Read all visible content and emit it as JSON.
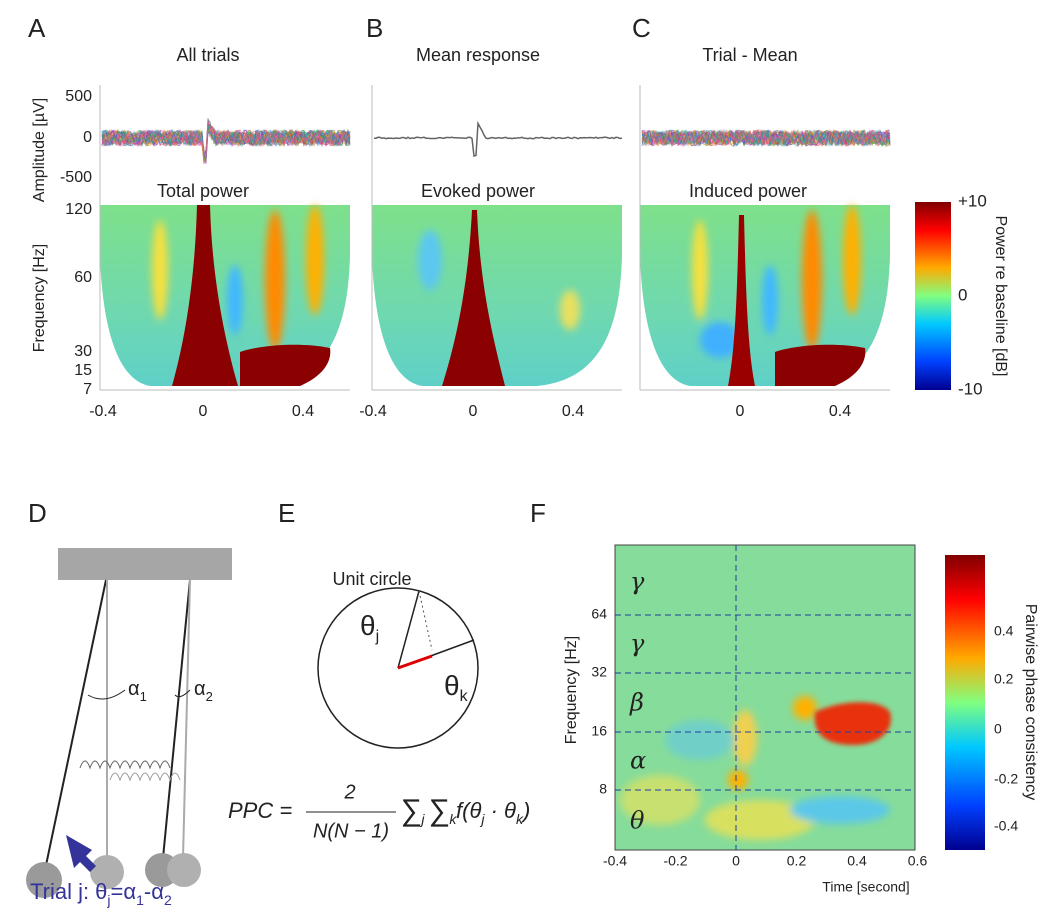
{
  "panel_a": {
    "label": "A",
    "title": "All trials",
    "amplitude_axis_label": "Amplitude [µV]",
    "amplitude_ticks": [
      "500",
      "0",
      "-500"
    ],
    "power_title": "Total power",
    "frequency_axis_label": "Frequency [Hz]",
    "frequency_ticks": [
      "120",
      "60",
      "30",
      "15",
      "7"
    ],
    "time_ticks": [
      "-0.4",
      "0",
      "0.4"
    ]
  },
  "panel_b": {
    "label": "B",
    "title": "Mean response",
    "power_title": "Evoked power",
    "time_ticks": [
      "-0.4",
      "0",
      "0.4"
    ]
  },
  "panel_c": {
    "label": "C",
    "title": "Trial - Mean",
    "power_title": "Induced power",
    "time_ticks": [
      "0",
      "0.4"
    ]
  },
  "power_colorbar": {
    "label": "Power re baseline [dB]",
    "ticks": [
      "+10",
      "0",
      "-10"
    ]
  },
  "panel_d": {
    "label": "D",
    "alpha_1": [
      "α",
      "1"
    ],
    "alpha_2": [
      "α",
      "2"
    ],
    "caption": [
      "Trial j: θ",
      "j",
      "=α",
      "1",
      "-α",
      "2"
    ]
  },
  "panel_e": {
    "label": "E",
    "title": "Unit circle",
    "theta_j": [
      "θ",
      "j"
    ],
    "theta_k": [
      "θ",
      "k"
    ],
    "formula": {
      "lhs": "PPC =",
      "numerator": "2",
      "denominator": "N(N − 1)",
      "sum_j": [
        "∑",
        "j"
      ],
      "sum_k": [
        "∑",
        "k"
      ],
      "term": [
        "f(θ",
        "j",
        " · θ",
        "k",
        ")"
      ]
    }
  },
  "panel_f": {
    "label": "F",
    "y_axis_label": "Frequency [Hz]",
    "y_ticks": [
      "64",
      "32",
      "16",
      "8"
    ],
    "bands": [
      "γ",
      "γ",
      "β",
      "α",
      "θ"
    ],
    "x_ticks": [
      "-0.4",
      "-0.2",
      "0",
      "0.2",
      "0.4",
      "0.6"
    ],
    "x_axis_label": "Time [second]",
    "colorbar_ticks": [
      "0.4",
      "0.2",
      "0",
      "-0.2",
      "-0.4"
    ],
    "colorbar_label": "Pairwise phase consistency"
  }
}
